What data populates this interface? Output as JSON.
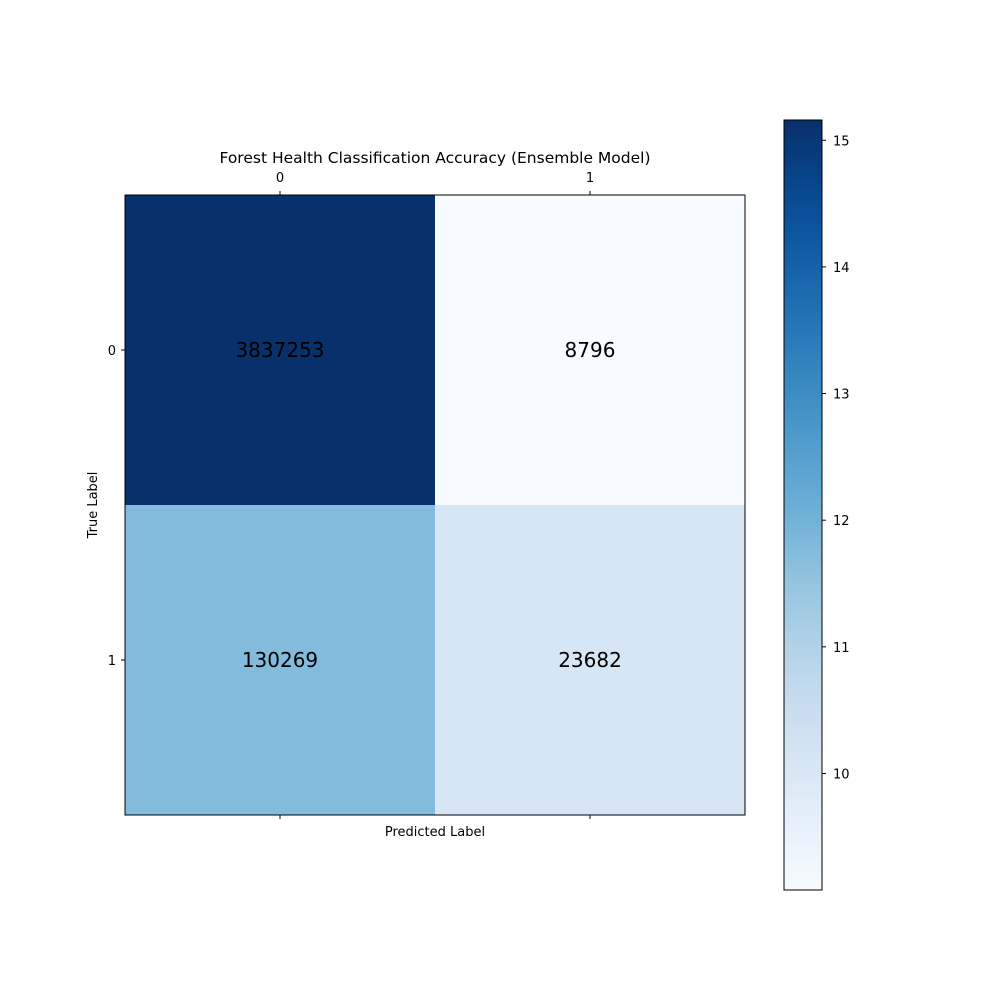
{
  "chart_data": {
    "type": "heatmap",
    "title": "Forest Health Classification Accuracy (Ensemble Model)",
    "xlabel": "Predicted Label",
    "ylabel": "True Label",
    "x_categories": [
      "0",
      "1"
    ],
    "y_categories": [
      "0",
      "1"
    ],
    "values": [
      [
        3837253,
        8796
      ],
      [
        130269,
        23682
      ]
    ],
    "cell_labels": [
      [
        "3837253",
        "8796"
      ],
      [
        "130269",
        "23682"
      ]
    ],
    "colormap": "Blues",
    "color_scale": "log",
    "colorbar": {
      "ticks": [
        "10",
        "11",
        "12",
        "13",
        "14",
        "15"
      ],
      "range": [
        9.08,
        15.16
      ]
    },
    "x_tick_position": "top",
    "grid": false,
    "colors": {
      "colormap_low": "#f7fbff",
      "colormap_high": "#08306b"
    }
  }
}
